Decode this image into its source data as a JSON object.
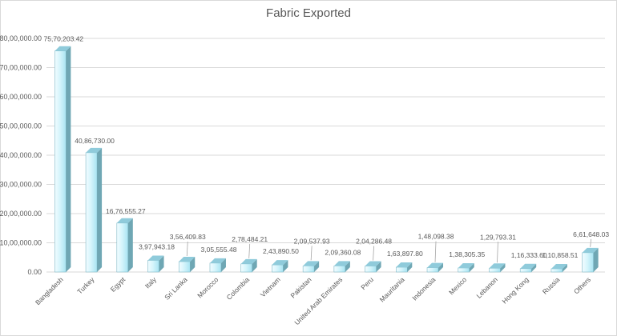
{
  "chart_data": {
    "type": "bar",
    "title": "Fabric Exported",
    "xlabel": "",
    "ylabel": "",
    "ylim": [
      0,
      8000000
    ],
    "y_ticks": [
      "0.00",
      "10,00,000.00",
      "20,00,000.00",
      "30,00,000.00",
      "40,00,000.00",
      "50,00,000.00",
      "60,00,000.00",
      "70,00,000.00",
      "80,00,000.00"
    ],
    "grid": true,
    "legend": "none",
    "bar_style": "3d-column",
    "colors": {
      "bar_front": "#bdeef8",
      "bar_side": "#6fa7b4",
      "bar_top": "#8fcbdb",
      "grid": "#d9d9d9",
      "text": "#595959"
    },
    "categories": [
      "Bangladesh",
      "Turkey",
      "Egypt",
      "Italy",
      "Sri Lanka",
      "Morocco",
      "Colombia",
      "Vietnam",
      "Pakistan",
      "United Arab Emirates",
      "Peru",
      "Mauritania",
      "Indonesia",
      "Mexico",
      "Lebanon",
      "Hong Kong",
      "Russia",
      "Others"
    ],
    "values": [
      7570203.42,
      4086730.0,
      1676555.27,
      397943.18,
      356409.83,
      305555.48,
      278484.21,
      243890.5,
      209537.93,
      209360.08,
      204286.48,
      163897.8,
      148098.38,
      138305.35,
      129793.31,
      116333.6,
      110858.51,
      661648.03
    ],
    "data_labels": [
      "75,70,203.42",
      "40,86,730.00",
      "16,76,555.27",
      "3,97,943.18",
      "3,56,409.83",
      "3,05,555.48",
      "2,78,484.21",
      "2,43,890.50",
      "2,09,537.93",
      "2,09,360.08",
      "2,04,286.48",
      "1,63,897.80",
      "1,48,098.38",
      "1,38,305.35",
      "1,29,793.31",
      "1,16,333.60",
      "1,10,858.51",
      "6,61,648.03"
    ]
  }
}
